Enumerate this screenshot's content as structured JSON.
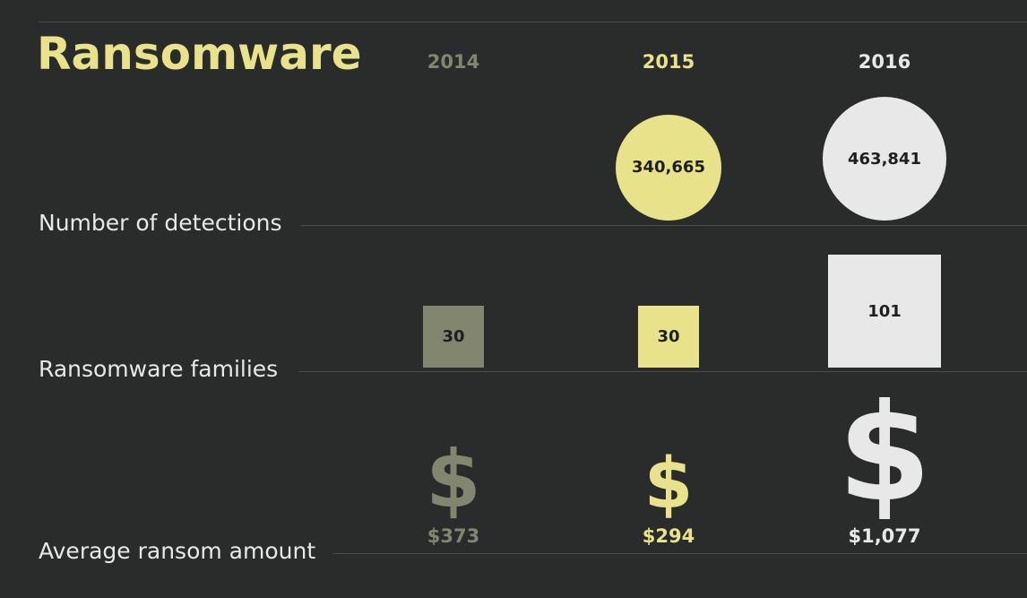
{
  "chart_data": {
    "type": "table",
    "title": "Ransomware",
    "years": [
      "2014",
      "2015",
      "2016"
    ],
    "colors": [
      "#82866e",
      "#e8e38a",
      "#e8e8e8"
    ],
    "background": "#2a2b2b",
    "rows": [
      {
        "label": "Number of detections",
        "mark": "circle",
        "values": [
          null,
          340665,
          463841
        ],
        "value_labels": [
          "",
          "340,665",
          "463,841"
        ]
      },
      {
        "label": "Ransomware families",
        "mark": "square",
        "values": [
          30,
          30,
          101
        ],
        "value_labels": [
          "30",
          "30",
          "101"
        ]
      },
      {
        "label": "Average ransom amount",
        "mark": "dollar-icon",
        "values": [
          373,
          294,
          1077
        ],
        "value_labels": [
          "$373",
          "$294",
          "$1,077"
        ]
      }
    ]
  }
}
